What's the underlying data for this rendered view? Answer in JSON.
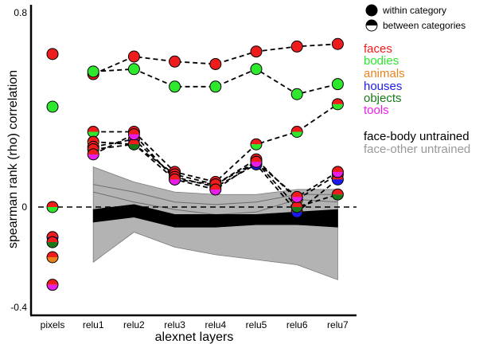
{
  "chart_data": {
    "type": "line",
    "xlabel": "alexnet layers",
    "ylabel": "spearman rank (rho) correlation",
    "ylim": [
      -0.4,
      0.8
    ],
    "y_ticks": [
      "0.8",
      "0",
      "-0.4"
    ],
    "reference_line_y": 0,
    "grid": false,
    "legend_placement": "right",
    "categories": [
      "pixels",
      "relu1",
      "relu2",
      "relu3",
      "relu4",
      "relu5",
      "relu6",
      "relu7"
    ],
    "marker_legend": [
      {
        "label": "within category",
        "style": "filled"
      },
      {
        "label": "between categories",
        "style": "half"
      }
    ],
    "category_legend": [
      {
        "label": "faces",
        "color": "#ee1c1c"
      },
      {
        "label": "bodies",
        "color": "#2ee82e"
      },
      {
        "label": "animals",
        "color": "#e8821e"
      },
      {
        "label": "houses",
        "color": "#1a1aee"
      },
      {
        "label": "objects",
        "color": "#1a7a1a"
      },
      {
        "label": "tools",
        "color": "#e81ee8"
      },
      {
        "label": "face-body untrained",
        "color": "#000000"
      },
      {
        "label": "face-other untrained",
        "color": "#999999"
      }
    ],
    "series": [
      {
        "kind": "within",
        "colors": [
          "#ee1c1c"
        ],
        "dashed": true,
        "values": [
          0.61,
          0.53,
          0.6,
          0.58,
          0.57,
          0.62,
          0.64,
          0.65
        ]
      },
      {
        "kind": "within",
        "colors": [
          "#2ee82e"
        ],
        "dashed": true,
        "values": [
          0.4,
          0.54,
          0.55,
          0.48,
          0.48,
          0.55,
          0.45,
          0.49
        ]
      },
      {
        "kind": "between",
        "colors": [
          "#ee1c1c",
          "#2ee82e"
        ],
        "dashed": true,
        "values": [
          0.0,
          0.3,
          0.3,
          0.14,
          0.1,
          0.25,
          0.3,
          0.41
        ]
      },
      {
        "kind": "between",
        "colors": [
          "#ee1c1c",
          "#e8821e"
        ],
        "dashed": true,
        "values": [
          -0.2,
          0.26,
          0.25,
          0.13,
          0.09,
          0.19,
          0.03,
          0.13
        ]
      },
      {
        "kind": "between",
        "colors": [
          "#ee1c1c",
          "#1a1aee"
        ],
        "dashed": true,
        "values": [
          -0.12,
          0.24,
          0.27,
          0.12,
          0.08,
          0.17,
          -0.02,
          0.11
        ]
      },
      {
        "kind": "between",
        "colors": [
          "#ee1c1c",
          "#1a7a1a"
        ],
        "dashed": true,
        "values": [
          -0.14,
          0.23,
          0.25,
          0.11,
          0.09,
          0.18,
          0.0,
          0.05
        ]
      },
      {
        "kind": "between",
        "colors": [
          "#ee1c1c",
          "#e81ee8"
        ],
        "dashed": true,
        "values": [
          -0.31,
          0.21,
          0.29,
          0.11,
          0.07,
          0.18,
          0.04,
          0.14
        ]
      }
    ],
    "bands": [
      {
        "name": "face-other untrained",
        "color": "#b3b3b3",
        "lower": [
          -0.22,
          -0.1,
          -0.16,
          -0.19,
          -0.21,
          -0.23,
          -0.29
        ],
        "upper": [
          0.16,
          0.1,
          0.06,
          0.05,
          0.05,
          0.07,
          0.07
        ],
        "mean_upper": [
          0.09,
          0.06,
          0.02,
          0.01,
          0.02,
          0.05,
          0.05
        ],
        "mean_lower": [
          0.06,
          0.02,
          -0.01,
          -0.03,
          -0.02,
          0.03,
          0.02
        ]
      },
      {
        "name": "face-body untrained",
        "color": "#000000",
        "lower": [
          -0.06,
          -0.04,
          -0.08,
          -0.08,
          -0.07,
          -0.07,
          -0.08
        ],
        "upper": [
          -0.01,
          0.01,
          -0.03,
          -0.03,
          -0.03,
          -0.02,
          -0.01
        ]
      }
    ]
  }
}
